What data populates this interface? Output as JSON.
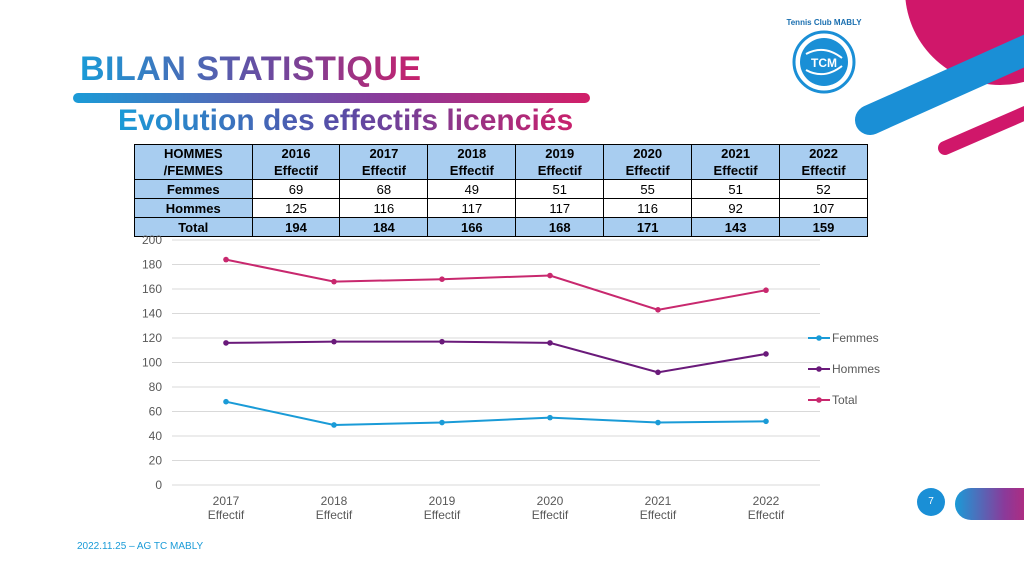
{
  "title": "BILAN STATISTIQUE",
  "subtitle": "Evolution des effectifs licenciés",
  "logo": {
    "text_top": "Tennis Club MABLY",
    "text_center": "TCM"
  },
  "footer": "2022.11.25 – AG TC MABLY",
  "page_number": "7",
  "table": {
    "header_label_line1": "HOMMES",
    "header_label_line2": "/FEMMES",
    "columns": [
      {
        "year": "2016",
        "sub": "Effectif"
      },
      {
        "year": "2017",
        "sub": "Effectif"
      },
      {
        "year": "2018",
        "sub": "Effectif"
      },
      {
        "year": "2019",
        "sub": "Effectif"
      },
      {
        "year": "2020",
        "sub": "Effectif"
      },
      {
        "year": "2021",
        "sub": "Effectif"
      },
      {
        "year": "2022",
        "sub": "Effectif"
      }
    ],
    "rows": [
      {
        "label": "Femmes",
        "values": [
          "69",
          "68",
          "49",
          "51",
          "55",
          "51",
          "52"
        ]
      },
      {
        "label": "Hommes",
        "values": [
          "125",
          "116",
          "117",
          "117",
          "116",
          "92",
          "107"
        ]
      },
      {
        "label": "Total",
        "values": [
          "194",
          "184",
          "166",
          "168",
          "171",
          "143",
          "159"
        ]
      }
    ]
  },
  "chart_data": {
    "type": "line",
    "categories": [
      [
        "2017",
        "Effectif"
      ],
      [
        "2018",
        "Effectif"
      ],
      [
        "2019",
        "Effectif"
      ],
      [
        "2020",
        "Effectif"
      ],
      [
        "2021",
        "Effectif"
      ],
      [
        "2022",
        "Effectif"
      ]
    ],
    "series": [
      {
        "name": "Femmes",
        "color": "#1a9bd7",
        "values": [
          68,
          49,
          51,
          55,
          51,
          52
        ]
      },
      {
        "name": "Hommes",
        "color": "#6a1a7a",
        "values": [
          116,
          117,
          117,
          116,
          92,
          107
        ]
      },
      {
        "name": "Total",
        "color": "#c8286e",
        "values": [
          184,
          166,
          168,
          171,
          143,
          159
        ]
      }
    ],
    "ylim": [
      0,
      200
    ],
    "yticks": [
      "0",
      "20",
      "40",
      "60",
      "80",
      "100",
      "120",
      "140",
      "160",
      "180",
      "200"
    ],
    "grid": true,
    "legend": "right"
  },
  "colors": {
    "blue": "#1a9bd7",
    "pink": "#d11f68",
    "table_header": "#a8cdf0"
  }
}
